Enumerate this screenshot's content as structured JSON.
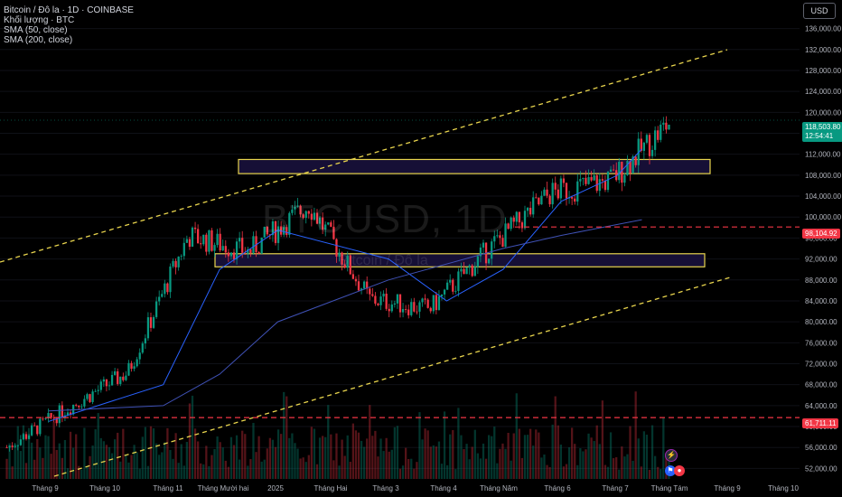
{
  "legend": {
    "symbol_line": "Bitcoin / Đô la · 1D · COINBASE",
    "volume_line": "Khối lượng · BTC",
    "sma50_line": "SMA (50, close)",
    "sma200_line": "SMA (200, close)"
  },
  "watermark": {
    "ticker": "BTCUSD, 1D",
    "name": "Bitcoin / Đô la"
  },
  "currency_button": "USD",
  "current_price": {
    "value": "118,503.80",
    "countdown": "12:54:41"
  },
  "marked_prices": [
    "98,104.92",
    "61,711.11"
  ],
  "price_axis_labels": [
    "136,000.00",
    "132,000.00",
    "128,000.00",
    "124,000.00",
    "120,000.00",
    "116,000.00",
    "112,000.00",
    "108,000.00",
    "104,000.00",
    "100,000.00",
    "96,000.00",
    "92,000.00",
    "88,000.00",
    "84,000.00",
    "80,000.00",
    "76,000.00",
    "72,000.00",
    "68,000.00",
    "64,000.00",
    "60,000.00",
    "56,000.00",
    "52,000.00"
  ],
  "time_axis_labels": [
    "Tháng 9",
    "Tháng 10",
    "Tháng 11",
    "Tháng Mười hai",
    "2025",
    "Tháng Hai",
    "Tháng 3",
    "Tháng 4",
    "Tháng Năm",
    "Tháng 6",
    "Tháng 7",
    "Tháng Tám",
    "Tháng 9",
    "Tháng 10"
  ],
  "colors": {
    "up": "#089981",
    "down": "#f23645",
    "sma50": "#2962ff",
    "sma200": "#3f51b5",
    "channel": "#e8d44d",
    "zone_border": "#e8d44d",
    "zone_fill": "#1a1240"
  },
  "chart_data": {
    "type": "candlestick",
    "title": "Bitcoin / Đô la · 1D · COINBASE",
    "y_range": [
      50000,
      138000
    ],
    "x_range": [
      "2024-08-20",
      "2025-10-20"
    ],
    "ohlc_monthly_approx": [
      {
        "t": "2024-09",
        "open": 59000,
        "high": 66000,
        "low": 53000,
        "close": 63500
      },
      {
        "t": "2024-10",
        "open": 63500,
        "high": 73500,
        "low": 58900,
        "close": 70300
      },
      {
        "t": "2024-11",
        "open": 70300,
        "high": 99600,
        "low": 66800,
        "close": 96400
      },
      {
        "t": "2024-12",
        "open": 96400,
        "high": 108300,
        "low": 91300,
        "close": 93400
      },
      {
        "t": "2025-01",
        "open": 93400,
        "high": 109300,
        "low": 89200,
        "close": 102400
      },
      {
        "t": "2025-02",
        "open": 102400,
        "high": 102800,
        "low": 78200,
        "close": 84300
      },
      {
        "t": "2025-03",
        "open": 84300,
        "high": 95000,
        "low": 76600,
        "close": 82500
      },
      {
        "t": "2025-04",
        "open": 82500,
        "high": 95700,
        "low": 74500,
        "close": 94200
      },
      {
        "t": "2025-05",
        "open": 94200,
        "high": 111900,
        "low": 93400,
        "close": 104600
      },
      {
        "t": "2025-06",
        "open": 104600,
        "high": 110500,
        "low": 98200,
        "close": 107100
      },
      {
        "t": "2025-07",
        "open": 107100,
        "high": 123200,
        "low": 105300,
        "close": 118500
      }
    ],
    "sma50_approx": [
      {
        "t": "2024-09",
        "v": 61000
      },
      {
        "t": "2024-11",
        "v": 68000
      },
      {
        "t": "2024-12",
        "v": 90000
      },
      {
        "t": "2025-01",
        "v": 97500
      },
      {
        "t": "2025-03",
        "v": 92000
      },
      {
        "t": "2025-04",
        "v": 84000
      },
      {
        "t": "2025-05",
        "v": 90000
      },
      {
        "t": "2025-06",
        "v": 103000
      },
      {
        "t": "2025-07",
        "v": 108000
      },
      {
        "t": "2025-07-28",
        "v": 113000
      }
    ],
    "sma200_approx": [
      {
        "t": "2024-09",
        "v": 63000
      },
      {
        "t": "2024-11",
        "v": 64000
      },
      {
        "t": "2024-12",
        "v": 70000
      },
      {
        "t": "2025-01",
        "v": 80000
      },
      {
        "t": "2025-03",
        "v": 88000
      },
      {
        "t": "2025-05",
        "v": 94000
      },
      {
        "t": "2025-06",
        "v": 96500
      },
      {
        "t": "2025-07-28",
        "v": 99500
      }
    ],
    "horizontal_lines": [
      98104.92,
      61711.11
    ],
    "zones": [
      {
        "low": 108300,
        "high": 111000
      },
      {
        "low": 90500,
        "high": 93000
      }
    ]
  }
}
